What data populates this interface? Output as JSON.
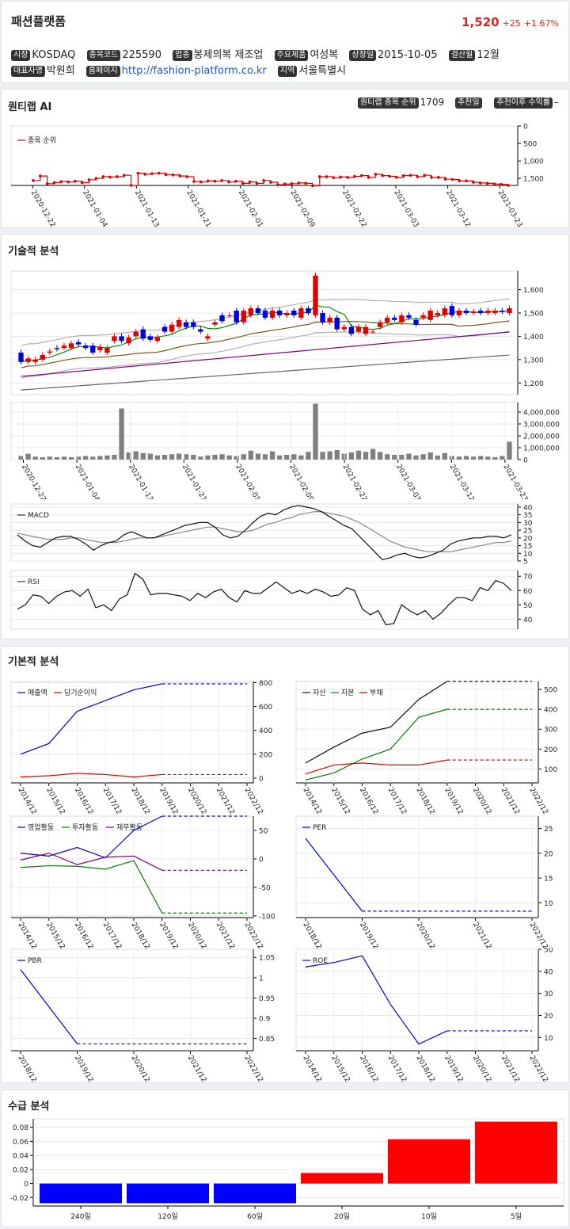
{
  "header": {
    "name": "패션플랫폼",
    "price": "1,520",
    "change": "+25",
    "change_pct": "+1.67%",
    "info": [
      {
        "tag": "시장",
        "value": "KOSDAQ"
      },
      {
        "tag": "종목코드",
        "value": "225590"
      },
      {
        "tag": "업종",
        "value": "봉제의복 제조업"
      },
      {
        "tag": "주요제품",
        "value": "여성복"
      },
      {
        "tag": "상장일",
        "value": "2015-10-05"
      },
      {
        "tag": "결산월",
        "value": "12월"
      },
      {
        "tag": "대표자명",
        "value": "박원희"
      },
      {
        "tag": "홈페이지",
        "value": "http://fashion-platform.co.kr"
      },
      {
        "tag": "지역",
        "value": "서울특별시"
      }
    ]
  },
  "ai": {
    "title": "퀀티랩 AI",
    "rank_tag": "퀀티랩 종목 순위",
    "rank_value": "1709",
    "rec_tag": "추천일",
    "rec_value": "",
    "ret_tag": "추천이후 수익률",
    "ret_value": "–"
  },
  "sections": {
    "tech": "기술적 분석",
    "fund": "기본적 분석",
    "supply": "수급 분석"
  },
  "dates": [
    "2020-12-22",
    "2021-01-04",
    "2021-01-13",
    "2021-01-21",
    "2021-02-01",
    "2021-02-09",
    "2021-02-22",
    "2021-03-03",
    "2021-03-12",
    "2021-03-23"
  ],
  "chart_data": [
    {
      "id": "rank",
      "type": "line",
      "legend": [
        "종목 순위"
      ],
      "color": "#e00000",
      "ylim": [
        0,
        1700
      ],
      "yticks": [
        0,
        500,
        1000,
        1500
      ],
      "ytick_labels": [
        "0",
        "500",
        "1,000",
        "1,500"
      ],
      "values": [
        1560,
        1430,
        1650,
        1620,
        1590,
        1600,
        1580,
        1620,
        1540,
        1500,
        1450,
        1460,
        1450,
        1410,
        1700,
        1350,
        1380,
        1360,
        1350,
        1390,
        1400,
        1430,
        1450,
        1590,
        1600,
        1570,
        1580,
        1560,
        1600,
        1580,
        1640,
        1600,
        1640,
        1560,
        1610,
        1680,
        1660,
        1650,
        1630,
        1640,
        1710,
        1450,
        1450,
        1480,
        1460,
        1470,
        1440,
        1420,
        1470,
        1380,
        1420,
        1440,
        1470,
        1420,
        1410,
        1450,
        1410,
        1470,
        1470,
        1520,
        1530,
        1570,
        1570,
        1610,
        1630,
        1640,
        1660,
        1670,
        1700
      ]
    },
    {
      "id": "candle",
      "type": "candlestick",
      "ylim": [
        1150,
        1680
      ],
      "yticks": [
        1200,
        1300,
        1400,
        1500,
        1600
      ],
      "ytick_labels": [
        "1,200",
        "1,300",
        "1,400",
        "1,500",
        "1,600"
      ],
      "close": [
        1290,
        1305,
        1300,
        1320,
        1335,
        1345,
        1360,
        1370,
        1365,
        1350,
        1330,
        1355,
        1350,
        1400,
        1380,
        1395,
        1420,
        1390,
        1385,
        1395,
        1420,
        1450,
        1470,
        1440,
        1440,
        1420,
        1400,
        1460,
        1465,
        1490,
        1460,
        1510,
        1520,
        1500,
        1480,
        1510,
        1490,
        1500,
        1490,
        1520,
        1500,
        1660,
        1460,
        1480,
        1430,
        1440,
        1410,
        1440,
        1440,
        1420,
        1460,
        1480,
        1470,
        1490,
        1480,
        1450,
        1490,
        1510,
        1500,
        1520,
        1490,
        1510,
        1500,
        1505,
        1500,
        1510,
        1510,
        1505,
        1520
      ],
      "open": [
        1330,
        1290,
        1290,
        1300,
        1330,
        1350,
        1350,
        1350,
        1375,
        1360,
        1360,
        1340,
        1330,
        1380,
        1400,
        1370,
        1400,
        1430,
        1400,
        1380,
        1440,
        1420,
        1440,
        1460,
        1460,
        1430,
        1390,
        1450,
        1490,
        1490,
        1510,
        1460,
        1490,
        1520,
        1510,
        1480,
        1510,
        1490,
        1510,
        1480,
        1520,
        1490,
        1500,
        1460,
        1480,
        1430,
        1440,
        1420,
        1410,
        1420,
        1440,
        1460,
        1480,
        1460,
        1490,
        1470,
        1480,
        1470,
        1490,
        1490,
        1530,
        1490,
        1510,
        1500,
        1510,
        1500,
        1500,
        1510,
        1500
      ]
    },
    {
      "id": "volume",
      "type": "bar",
      "ylim": [
        0,
        4800000
      ],
      "yticks": [
        0,
        1000000,
        2000000,
        3000000,
        4000000
      ],
      "ytick_labels": [
        "0",
        "1,000,000",
        "2,000,000",
        "3,000,000",
        "4,000,000"
      ],
      "values": [
        300000,
        500000,
        250000,
        200000,
        250000,
        200000,
        250000,
        200000,
        250000,
        300000,
        250000,
        300000,
        350000,
        400000,
        4300000,
        600000,
        700000,
        550000,
        500000,
        350000,
        400000,
        450000,
        500000,
        450000,
        400000,
        250000,
        350000,
        400000,
        450000,
        350000,
        300000,
        450000,
        750000,
        500000,
        450000,
        700000,
        350000,
        400000,
        450000,
        350000,
        650000,
        4700000,
        650000,
        700000,
        800000,
        500000,
        600000,
        750000,
        650000,
        900000,
        650000,
        450000,
        400000,
        400000,
        500000,
        350000,
        450000,
        600000,
        350000,
        550000,
        300000,
        250000,
        300000,
        250000,
        300000,
        250000,
        200000,
        300000,
        1500000
      ]
    },
    {
      "id": "macd",
      "type": "line",
      "legend": [
        "MACD"
      ],
      "ylim": [
        5,
        42
      ],
      "yticks": [
        5,
        10,
        15,
        20,
        25,
        30,
        35,
        40
      ],
      "macd": [
        22,
        18,
        15,
        14,
        17,
        20,
        21,
        21,
        19,
        16,
        12,
        15,
        17,
        18,
        22,
        24,
        22,
        20,
        20,
        22,
        24,
        26,
        28,
        29,
        30,
        30,
        27,
        22,
        20,
        21,
        25,
        30,
        34,
        36,
        35,
        38,
        40,
        41,
        40,
        39,
        37,
        34,
        31,
        28,
        26,
        21,
        16,
        11,
        6,
        7,
        9,
        10,
        8,
        7,
        8,
        10,
        12,
        16,
        18,
        19,
        20,
        20,
        21,
        21,
        20,
        22
      ],
      "signal": [
        23,
        22,
        21,
        20,
        19,
        19,
        19,
        20,
        20,
        19,
        18,
        17,
        17,
        17,
        18,
        19,
        20,
        20,
        20,
        21,
        22,
        23,
        24,
        25,
        26,
        27,
        27,
        26,
        25,
        24,
        24,
        25,
        27,
        29,
        30,
        32,
        33,
        35,
        36,
        37,
        37,
        36,
        35,
        34,
        32,
        30,
        27,
        24,
        21,
        18,
        16,
        14,
        13,
        12,
        11,
        11,
        11,
        11,
        12,
        13,
        14,
        15,
        16,
        17,
        17,
        18
      ]
    },
    {
      "id": "rsi",
      "type": "line",
      "legend": [
        "RSI"
      ],
      "ylim": [
        33,
        74
      ],
      "yticks": [
        40,
        50,
        60,
        70
      ],
      "values": [
        47,
        50,
        57,
        56,
        51,
        56,
        59,
        60,
        56,
        61,
        48,
        50,
        46,
        54,
        57,
        72,
        68,
        57,
        58,
        58,
        57,
        56,
        53,
        58,
        55,
        59,
        61,
        55,
        52,
        60,
        58,
        58,
        62,
        66,
        62,
        58,
        60,
        58,
        61,
        59,
        56,
        57,
        62,
        60,
        47,
        43,
        46,
        36,
        37,
        50,
        46,
        43,
        46,
        40,
        44,
        50,
        55,
        55,
        53,
        62,
        60,
        67,
        65,
        60
      ]
    },
    {
      "id": "fin1",
      "type": "line",
      "legend": [
        "매출액",
        "당기순이익"
      ],
      "colors": [
        "#0000e0",
        "#e00000"
      ],
      "categories": [
        "2014/12",
        "2015/12",
        "2016/12",
        "2017/12",
        "2018/12",
        "2019/12",
        "2020/12",
        "2021/12",
        "2022/12"
      ],
      "ylim": [
        -40,
        810
      ],
      "yticks": [
        0,
        200,
        400,
        600,
        800
      ],
      "series": [
        {
          "values": [
            200,
            290,
            560,
            650,
            740,
            790,
            790,
            790,
            790
          ]
        },
        {
          "values": [
            10,
            20,
            40,
            30,
            10,
            30,
            30,
            30,
            30
          ]
        }
      ]
    },
    {
      "id": "fin2",
      "type": "line",
      "legend": [
        "자산",
        "자본",
        "부채"
      ],
      "colors": [
        "#111111",
        "#0a7a0a",
        "#e00000"
      ],
      "categories": [
        "2014/12",
        "2015/12",
        "2016/12",
        "2017/12",
        "2018/12",
        "2019/12",
        "2020/12",
        "2021/12",
        "2022/12"
      ],
      "ylim": [
        30,
        540
      ],
      "yticks": [
        100,
        200,
        300,
        400,
        500
      ],
      "series": [
        {
          "values": [
            130,
            210,
            280,
            310,
            450,
            550,
            550,
            550,
            550
          ]
        },
        {
          "values": [
            45,
            80,
            150,
            200,
            360,
            400,
            400,
            400,
            400
          ]
        },
        {
          "values": [
            75,
            120,
            130,
            120,
            120,
            145,
            145,
            145,
            145
          ]
        }
      ]
    },
    {
      "id": "fin3",
      "type": "line",
      "legend": [
        "영업활동",
        "투자활동",
        "재무활동"
      ],
      "colors": [
        "#0000e0",
        "#0a7a0a",
        "#800080"
      ],
      "categories": [
        "2014/12",
        "2015/12",
        "2016/12",
        "2017/12",
        "2018/12",
        "2019/12",
        "2020/12",
        "2021/12",
        "2022/12"
      ],
      "ylim": [
        -103,
        75
      ],
      "yticks": [
        50,
        0,
        -50,
        -100
      ],
      "series": [
        {
          "values": [
            10,
            5,
            20,
            2,
            50,
            75,
            75,
            75,
            75
          ]
        },
        {
          "values": [
            -15,
            -12,
            -13,
            -18,
            -3,
            -95,
            -95,
            -95,
            -95
          ]
        },
        {
          "values": [
            -2,
            10,
            -10,
            3,
            5,
            -20,
            -20,
            -20,
            -20
          ]
        }
      ]
    },
    {
      "id": "per",
      "type": "line",
      "legend": [
        "PER"
      ],
      "colors": [
        "#0000e0"
      ],
      "categories": [
        "2018/12",
        "2019/12",
        "2020/12",
        "2021/12",
        "2022/12"
      ],
      "ylim": [
        7,
        27.5
      ],
      "yticks": [
        10,
        15,
        20,
        25
      ],
      "series": [
        {
          "values": [
            23,
            8.3,
            8.3,
            8.3,
            8.3
          ]
        }
      ]
    },
    {
      "id": "pbr",
      "type": "line",
      "legend": [
        "PBR"
      ],
      "colors": [
        "#0000e0"
      ],
      "categories": [
        "2018/12",
        "2019/12",
        "2020/12",
        "2021/12",
        "2022/12"
      ],
      "ylim": [
        0.82,
        1.07
      ],
      "yticks": [
        0.85,
        0.9,
        0.95,
        1,
        1.05
      ],
      "series": [
        {
          "values": [
            1.02,
            0.837,
            0.837,
            0.837,
            0.837
          ]
        }
      ]
    },
    {
      "id": "roe",
      "type": "line",
      "legend": [
        "ROE"
      ],
      "colors": [
        "#0000e0"
      ],
      "categories": [
        "2014/12",
        "2015/12",
        "2016/12",
        "2017/12",
        "2018/12",
        "2019/12",
        "2020/12",
        "2021/12",
        "2022/12"
      ],
      "ylim": [
        4,
        50
      ],
      "yticks": [
        10,
        20,
        30,
        40,
        50
      ],
      "series": [
        {
          "values": [
            42,
            44,
            47,
            25,
            7,
            13,
            13,
            13,
            13
          ]
        }
      ]
    },
    {
      "id": "supply",
      "type": "bar",
      "categories": [
        "240일",
        "120일",
        "60일",
        "20일",
        "10일",
        "5일"
      ],
      "values": [
        -0.028,
        -0.028,
        -0.028,
        0.015,
        0.063,
        0.088
      ],
      "ylim": [
        -0.032,
        0.092
      ],
      "yticks": [
        -0.02,
        0,
        0.02,
        0.04,
        0.06,
        0.08
      ],
      "ytick_labels": [
        "-0.02",
        "0",
        "0.02",
        "0.04",
        "0.06",
        "0.08"
      ]
    }
  ]
}
